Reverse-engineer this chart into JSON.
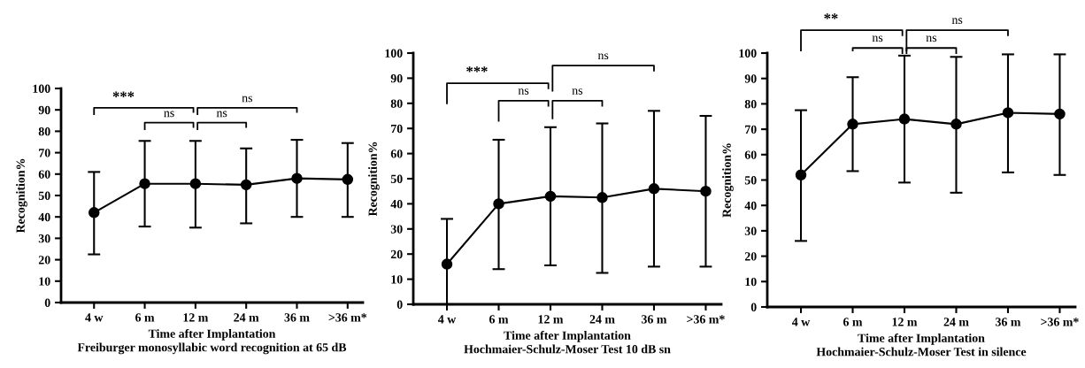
{
  "chart_data": [
    {
      "type": "line",
      "xlabel": "Time after Implantation\nFreiburger monosyllabic word recognition at 65 dB",
      "ylabel": "Recognition%",
      "categories": [
        "4 w",
        "6 m",
        "12 m",
        "24 m",
        "36 m",
        ">36 m*"
      ],
      "series": [
        {
          "color": "#000000",
          "values": [
            42,
            55.5,
            55.5,
            55,
            58,
            57.5
          ],
          "errors": [
            [
              22.5,
              61
            ],
            [
              35.5,
              75.5
            ],
            [
              35,
              75.5
            ],
            [
              37,
              72
            ],
            [
              40,
              76
            ],
            [
              40,
              74.5
            ]
          ]
        }
      ],
      "ylim": [
        0,
        100
      ],
      "yticks": [
        0,
        10,
        20,
        30,
        40,
        50,
        60,
        70,
        80,
        90,
        100
      ],
      "grid": false,
      "legend": false,
      "marker": "circle",
      "line_style": "solid",
      "annotations": [
        "***",
        "ns",
        "ns",
        "ns"
      ]
    },
    {
      "type": "line",
      "xlabel": "Time after Implantation\nHochmaier-Schulz-Moser Test 10 dB sn",
      "ylabel": "Recognition%",
      "categories": [
        "4 w",
        "6 m",
        "12 m",
        "24 m",
        "36 m",
        ">36 m*"
      ],
      "series": [
        {
          "color": "#000000",
          "values": [
            16,
            40,
            43,
            42.5,
            46,
            45
          ],
          "errors": [
            [
              0,
              34
            ],
            [
              14,
              65.5
            ],
            [
              15.5,
              70.5
            ],
            [
              12.5,
              72
            ],
            [
              15,
              77
            ],
            [
              15,
              75
            ]
          ]
        }
      ],
      "ylim": [
        0,
        100
      ],
      "yticks": [
        0,
        10,
        20,
        30,
        40,
        50,
        60,
        70,
        80,
        90,
        100
      ],
      "grid": false,
      "legend": false,
      "marker": "circle",
      "line_style": "solid",
      "annotations": [
        "***",
        "ns",
        "ns",
        "ns"
      ]
    },
    {
      "type": "line",
      "xlabel": "Time after Implantation\nHochmaier-Schulz-Moser Test in silence",
      "ylabel": "Recognition%",
      "categories": [
        "4 w",
        "6 m",
        "12 m",
        "24 m",
        "36 m",
        ">36 m*"
      ],
      "series": [
        {
          "color": "#000000",
          "values": [
            52,
            72,
            74,
            72,
            76.5,
            76
          ],
          "errors": [
            [
              26,
              77.5
            ],
            [
              53.5,
              90.5
            ],
            [
              49,
              99
            ],
            [
              45,
              98.5
            ],
            [
              53,
              99.5
            ],
            [
              52,
              99.5
            ]
          ]
        }
      ],
      "ylim": [
        0,
        100
      ],
      "yticks": [
        0,
        10,
        20,
        30,
        40,
        50,
        60,
        70,
        80,
        90,
        100
      ],
      "grid": false,
      "legend": false,
      "marker": "circle",
      "line_style": "solid",
      "annotations": [
        "**",
        "ns",
        "ns",
        "ns"
      ]
    }
  ]
}
